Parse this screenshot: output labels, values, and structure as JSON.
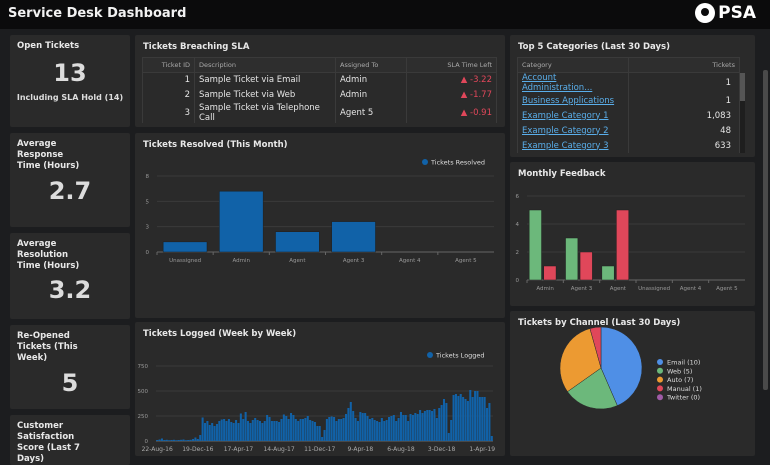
{
  "header": {
    "title": "Service Desk Dashboard",
    "logo": "PSA"
  },
  "kpis": [
    {
      "title": "Open Tickets",
      "value": "13",
      "sub": "Including SLA Hold (14)"
    },
    {
      "title": "Average Response Time (Hours)",
      "value": "2.7"
    },
    {
      "title": "Average Resolution Time (Hours)",
      "value": "3.2"
    },
    {
      "title": "Re-Opened Tickets (This Week)",
      "value": "5"
    },
    {
      "title": "Customer Satisfaction Score (Last 7 Days)"
    }
  ],
  "sla": {
    "title": "Tickets Breaching SLA",
    "columns": [
      "Ticket ID",
      "Description",
      "Assigned To",
      "SLA Time Left"
    ],
    "rows": [
      [
        "1",
        "Sample Ticket via Email",
        "Admin",
        "-3.22"
      ],
      [
        "2",
        "Sample Ticket via Web",
        "Admin",
        "-1.77"
      ],
      [
        "3",
        "Sample Ticket via Telephone Call",
        "Agent 5",
        "-0.91"
      ]
    ],
    "warning_icon": "warning-triangle-icon"
  },
  "categories": {
    "title": "Top 5 Categories (Last 30 Days)",
    "columns": [
      "Category",
      "Tickets"
    ],
    "rows": [
      [
        "Account Administration...",
        "1"
      ],
      [
        "Business Applications",
        "1"
      ],
      [
        "Example Category 1",
        "1,083"
      ],
      [
        "Example Category 2",
        "48"
      ],
      [
        "Example Category 3",
        "633"
      ]
    ]
  },
  "chart_data": [
    {
      "type": "bar",
      "title": "Tickets Resolved (This Month)",
      "categories": [
        "Unassigned",
        "Admin",
        "Agent",
        "Agent 3",
        "Agent 4",
        "Agent 5"
      ],
      "series": [
        {
          "name": "Tickets Resolved",
          "values": [
            1,
            6,
            2,
            3,
            0,
            0
          ],
          "color": "#1162a8"
        }
      ],
      "ylim": [
        0,
        7.5
      ],
      "yticks": [
        0,
        2.5,
        5,
        7.5
      ],
      "ytick_labels": [
        "0",
        "3",
        "5",
        "8"
      ],
      "legend": "top-right",
      "grid": true
    },
    {
      "type": "bar",
      "title": "Monthly Feedback",
      "categories": [
        "Admin",
        "Agent 3",
        "Agent",
        "Unassigned",
        "Agent 4",
        "Agent 5"
      ],
      "series": [
        {
          "values": [
            5,
            3,
            1,
            0,
            0,
            0
          ],
          "color": "#6cb87b"
        },
        {
          "values": [
            1,
            2,
            5,
            0,
            0,
            0
          ],
          "color": "#e0475a"
        }
      ],
      "ylim": [
        0,
        6
      ],
      "yticks": [
        0,
        2,
        4,
        6
      ],
      "ytick_labels": [
        "0",
        "2",
        "4",
        "6"
      ],
      "grid": true
    },
    {
      "type": "bar",
      "title": "Tickets Logged (Week by Week)",
      "x_tick_labels": [
        "22-Aug-16",
        "19-Dec-16",
        "17-Apr-17",
        "14-Aug-17",
        "11-Dec-17",
        "9-Apr-18",
        "6-Aug-18",
        "3-Dec-18",
        "1-Apr-19"
      ],
      "series": [
        {
          "name": "Tickets Logged",
          "color": "#1162a8",
          "values": [
            10,
            15,
            25,
            10,
            12,
            8,
            10,
            12,
            8,
            10,
            12,
            15,
            8,
            10,
            12,
            20,
            35,
            20,
            60,
            235,
            180,
            200,
            160,
            180,
            150,
            170,
            200,
            215,
            220,
            200,
            220,
            190,
            180,
            210,
            180,
            275,
            220,
            290,
            200,
            180,
            210,
            230,
            210,
            200,
            180,
            200,
            260,
            240,
            200,
            200,
            200,
            190,
            220,
            265,
            250,
            220,
            280,
            260,
            220,
            200,
            220,
            220,
            230,
            250,
            210,
            200,
            190,
            150,
            150,
            40,
            110,
            220,
            240,
            245,
            240,
            200,
            220,
            220,
            230,
            270,
            330,
            390,
            300,
            230,
            200,
            290,
            280,
            280,
            250,
            220,
            230,
            210,
            200,
            190,
            230,
            200,
            210,
            240,
            250,
            260,
            200,
            230,
            290,
            260,
            260,
            200,
            270,
            260,
            280,
            270,
            310,
            280,
            300,
            310,
            310,
            300,
            320,
            230,
            330,
            360,
            420,
            380,
            80,
            210,
            460,
            470,
            450,
            470,
            440,
            420,
            400,
            510,
            440,
            500,
            500,
            440,
            440,
            440,
            330,
            380,
            50
          ]
        }
      ],
      "ylim": [
        0,
        750
      ],
      "yticks": [
        0,
        250,
        500,
        750
      ],
      "ytick_labels": [
        "0",
        "250",
        "500",
        "750"
      ],
      "legend": "top-right",
      "grid": true
    },
    {
      "type": "pie",
      "title": "Tickets by Channel (Last 30 Days)",
      "slices": [
        {
          "label": "Email (10)",
          "value": 10,
          "color": "#4f8fe6"
        },
        {
          "label": "Web (5)",
          "value": 5,
          "color": "#6cb87b"
        },
        {
          "label": "Auto (7)",
          "value": 7,
          "color": "#ec9a32"
        },
        {
          "label": "Manual (1)",
          "value": 1,
          "color": "#e0475a"
        },
        {
          "label": "Twitter (0)",
          "value": 0,
          "color": "#a05ca8"
        }
      ],
      "legend": "right"
    }
  ]
}
